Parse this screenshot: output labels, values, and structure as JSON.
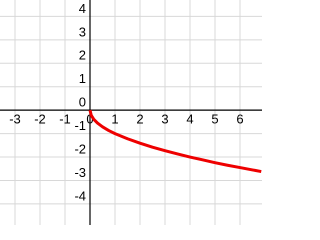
{
  "chart_data": {
    "type": "line",
    "x": [
      0,
      0.05,
      0.15,
      0.3,
      0.5,
      0.75,
      1,
      1.5,
      2,
      2.5,
      3,
      3.5,
      4,
      4.5,
      5,
      5.5,
      6,
      6.5,
      6.85
    ],
    "series": [
      {
        "color": "#ee0000",
        "values": [
          0,
          -0.22,
          -0.39,
          -0.55,
          -0.71,
          -0.87,
          -1,
          -1.22,
          -1.41,
          -1.58,
          -1.73,
          -1.87,
          -2,
          -2.12,
          -2.24,
          -2.35,
          -2.45,
          -2.55,
          -2.62
        ]
      }
    ],
    "xlim": [
      -3.6,
      6.88
    ],
    "ylim": [
      -4.9,
      4.7
    ],
    "xticks": [
      -3,
      -2,
      -1,
      0,
      1,
      2,
      3,
      4,
      5,
      6
    ],
    "yticks": [
      -4,
      -3,
      -2,
      -1,
      0,
      1,
      2,
      3,
      4
    ],
    "grid": true
  }
}
